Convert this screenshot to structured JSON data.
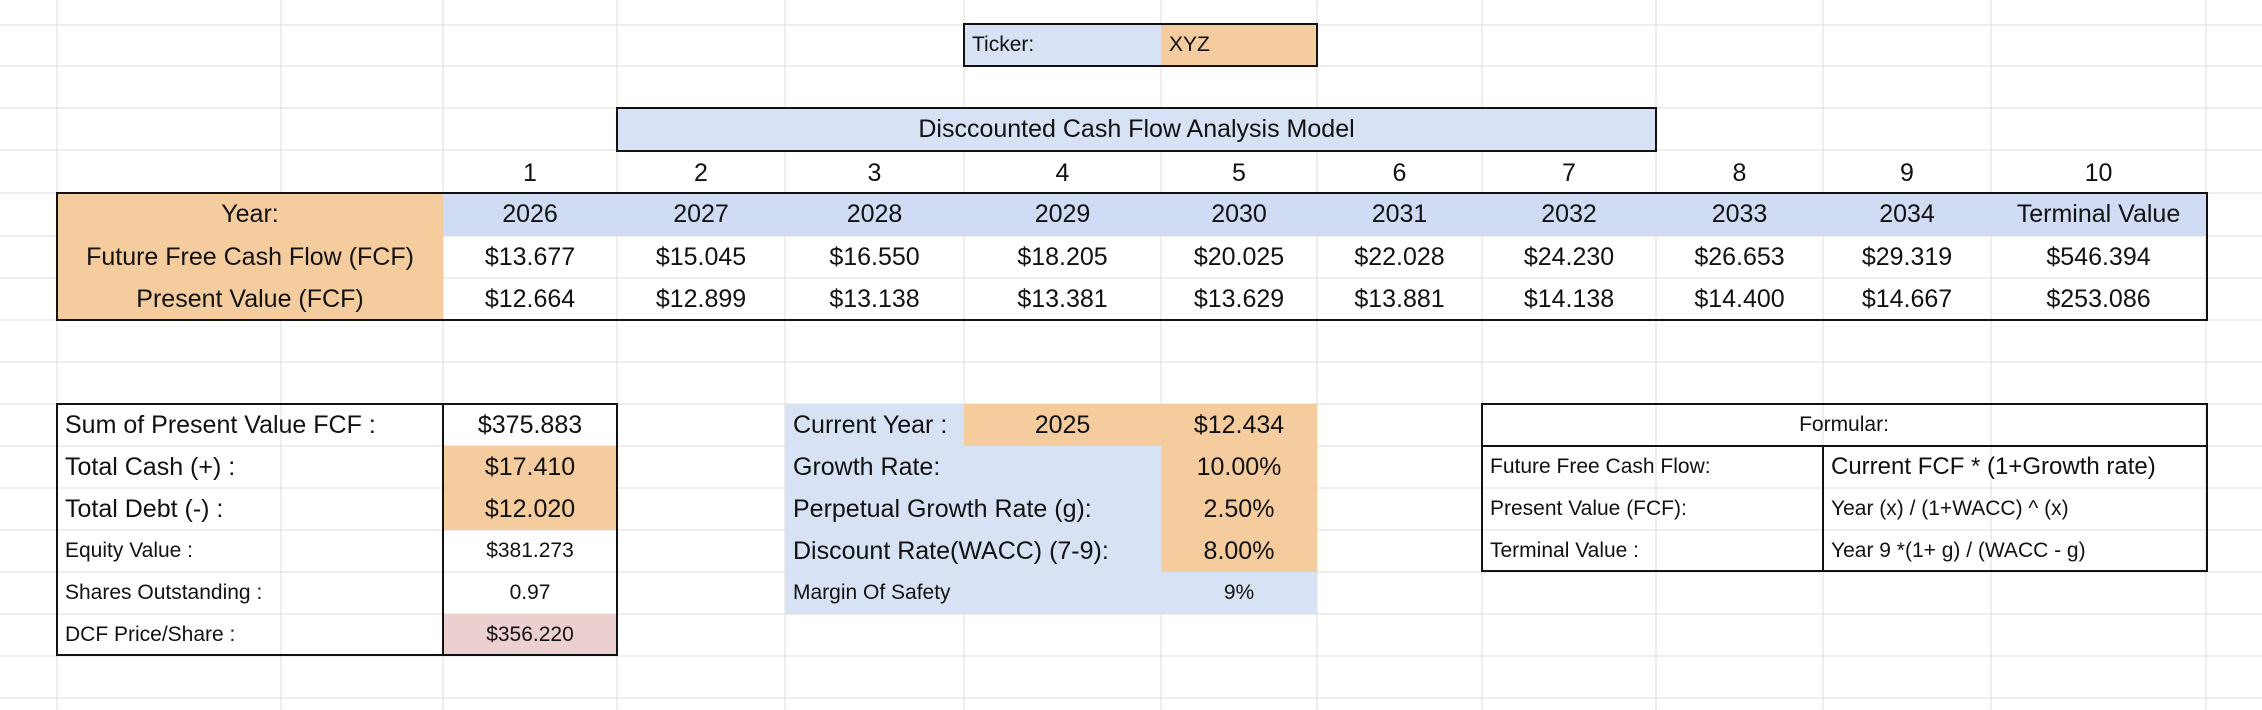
{
  "ticker": {
    "label": "Ticker:",
    "value": "XYZ"
  },
  "title": "Disccounted Cash Flow Analysis Model",
  "periods": [
    "1",
    "2",
    "3",
    "4",
    "5",
    "6",
    "7",
    "8",
    "9",
    "10"
  ],
  "table": {
    "row_labels": [
      "Year:",
      "Future Free Cash Flow (FCF)",
      "Present Value (FCF)"
    ],
    "years": [
      "2026",
      "2027",
      "2028",
      "2029",
      "2030",
      "2031",
      "2032",
      "2033",
      "2034",
      "Terminal Value"
    ],
    "fcf": [
      "$13.677",
      "$15.045",
      "$16.550",
      "$18.205",
      "$20.025",
      "$22.028",
      "$24.230",
      "$26.653",
      "$29.319",
      "$546.394"
    ],
    "pv": [
      "$12.664",
      "$12.899",
      "$13.138",
      "$13.381",
      "$13.629",
      "$13.881",
      "$14.138",
      "$14.400",
      "$14.667",
      "$253.086"
    ]
  },
  "summary": [
    {
      "label": "Sum of  Present Value FCF :",
      "value": "$375.883"
    },
    {
      "label": "Total Cash (+) :",
      "value": "$17.410"
    },
    {
      "label": "Total Debt (-) :",
      "value": "$12.020"
    },
    {
      "label": "Equity Value :",
      "value": "$381.273"
    },
    {
      "label": "Shares Outstanding :",
      "value": "0.97"
    },
    {
      "label": "DCF Price/Share :",
      "value": "$356.220"
    }
  ],
  "inputs": {
    "current_year_label": "Current Year :",
    "current_year": "2025",
    "current_fcf": "$12.434",
    "growth_label": "Growth Rate:",
    "growth": "10.00%",
    "perpetual_label": "Perpetual Growth Rate (g):",
    "perpetual": "2.50%",
    "wacc_label": "Discount Rate(WACC) (7-9):",
    "wacc": "8.00%",
    "mos_label": "Margin Of Safety",
    "mos": "9%"
  },
  "formulas": {
    "title": "Formular:",
    "rows": [
      {
        "label": "Future Free Cash Flow:",
        "formula": "Current FCF * (1+Growth rate)"
      },
      {
        "label": "Present Value (FCF):",
        "formula": "Year (x)  /  (1+WACC) ^ (x)"
      },
      {
        "label": "Terminal Value :",
        "formula": "Year 9 *(1+ g) / (WACC - g)"
      }
    ]
  },
  "colors": {
    "input_blue": "#d7e3f4",
    "input_orange": "#f5cc9e",
    "header_blue": "#cfdcf3",
    "result_pink": "#ecd0d0",
    "gridline": "#dcdcdc"
  }
}
